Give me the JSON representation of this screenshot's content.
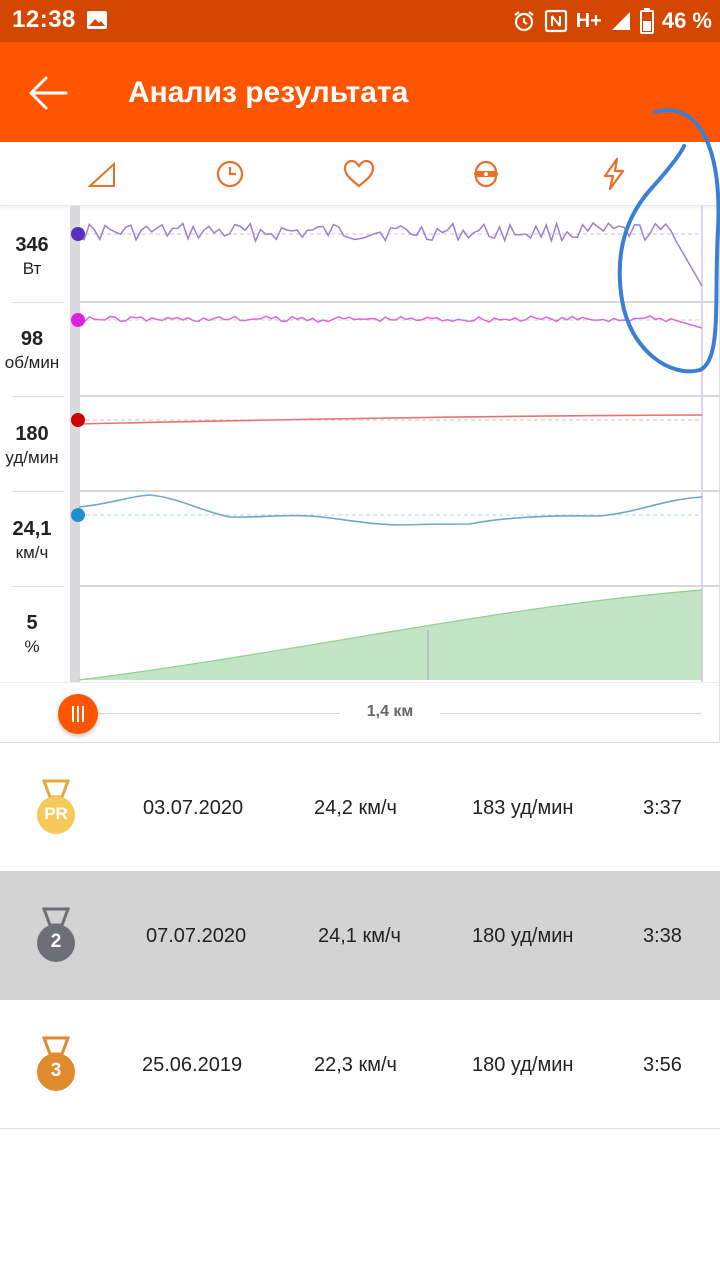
{
  "status_bar": {
    "time": "12:38",
    "network": "H+",
    "battery": "46 %",
    "icons": [
      "image-icon",
      "alarm-icon",
      "nfc-icon",
      "signal-icon",
      "battery-icon"
    ]
  },
  "header": {
    "back_icon": "arrow-left-icon",
    "title": "Анализ результата"
  },
  "tabs": [
    {
      "icon": "gradient-triangle-icon"
    },
    {
      "icon": "clock-icon"
    },
    {
      "icon": "heart-icon"
    },
    {
      "icon": "cadence-icon"
    },
    {
      "icon": "lightning-icon"
    }
  ],
  "metrics": [
    {
      "value": "346",
      "unit": "Вт",
      "color": "#9b7fd1",
      "dot": "#5a2fc2"
    },
    {
      "value": "98",
      "unit": "об/мин",
      "color": "#d86ad8",
      "dot": "#e020e0"
    },
    {
      "value": "180",
      "unit": "уд/мин",
      "color": "#e57373",
      "dot": "#cc0000"
    },
    {
      "value": "24,1",
      "unit": "км/ч",
      "color": "#6fa8c8",
      "dot": "#1e90d0"
    },
    {
      "value": "5",
      "unit": "%",
      "color": "#a5d6a7",
      "dot": ""
    }
  ],
  "scrubber": {
    "distance_label": "1,4 км"
  },
  "results": [
    {
      "medal": "PR",
      "medal_color": "#f5c95a",
      "date": "03.07.2020",
      "speed": "24,2 км/ч",
      "hr": "183 уд/мин",
      "time": "3:37",
      "selected": false
    },
    {
      "medal": "2",
      "medal_color": "#6e6e76",
      "date": "07.07.2020",
      "speed": "24,1 км/ч",
      "hr": "180 уд/мин",
      "time": "3:38",
      "selected": true
    },
    {
      "medal": "3",
      "medal_color": "#e08a2e",
      "date": "25.06.2019",
      "speed": "22,3 км/ч",
      "hr": "180 уд/мин",
      "time": "3:56",
      "selected": false
    }
  ],
  "colors": {
    "status_bar": "#d54600",
    "app_bar": "#ff5500",
    "accent": "#ff5500",
    "annotation": "#3a7fd5"
  }
}
